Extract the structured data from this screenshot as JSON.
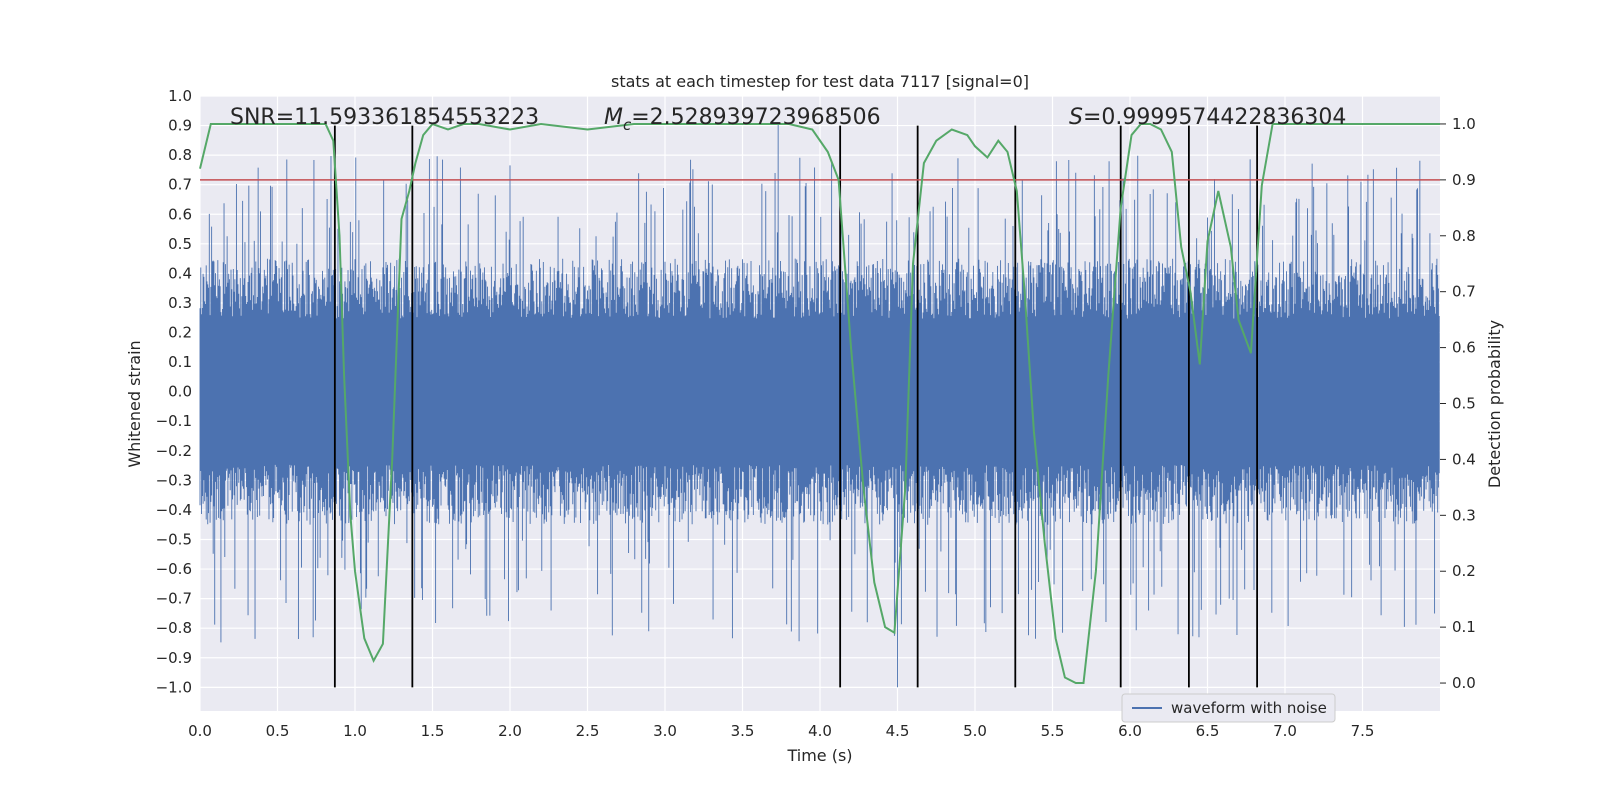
{
  "chart_data": {
    "type": "line",
    "title": "stats at each timestep for test data 7117 [signal=0]",
    "xlabel": "Time (s)",
    "ylabel_left": "Whitened strain",
    "ylabel_right": "Detection probability",
    "xlim": [
      0,
      8
    ],
    "ylim_left": [
      -1.08,
      1.0
    ],
    "ylim_right": [
      -0.05,
      1.05
    ],
    "x_ticks": [
      0,
      0.5,
      1,
      1.5,
      2,
      2.5,
      3,
      3.5,
      4,
      4.5,
      5,
      5.5,
      6,
      6.5,
      7,
      7.5
    ],
    "x_tick_labels": [
      "0.0",
      "0.5",
      "1.0",
      "1.5",
      "2.0",
      "2.5",
      "3.0",
      "3.5",
      "4.0",
      "4.5",
      "5.0",
      "5.5",
      "6.0",
      "6.5",
      "7.0",
      "7.5"
    ],
    "y_left_ticks": [
      1.0,
      0.9,
      0.8,
      0.7,
      0.6,
      0.5,
      0.4,
      0.3,
      0.2,
      0.1,
      0.0,
      -0.1,
      -0.2,
      -0.3,
      -0.4,
      -0.5,
      -0.6,
      -0.7,
      -0.8,
      -0.9,
      -1.0
    ],
    "y_left_tick_labels": [
      "1.0",
      "0.9",
      "0.8",
      "0.7",
      "0.6",
      "0.5",
      "0.4",
      "0.3",
      "0.2",
      "0.1",
      "0.0",
      "−0.1",
      "−0.2",
      "−0.3",
      "−0.4",
      "−0.5",
      "−0.6",
      "−0.7",
      "−0.8",
      "−0.9",
      "−1.0"
    ],
    "y_right_ticks": [
      1.0,
      0.9,
      0.8,
      0.7,
      0.6,
      0.5,
      0.4,
      0.3,
      0.2,
      0.1,
      0.0
    ],
    "y_right_tick_labels": [
      "1.0",
      "0.9",
      "0.8",
      "0.7",
      "0.6",
      "0.5",
      "0.4",
      "0.3",
      "0.2",
      "0.1",
      "0.0"
    ],
    "annotations": {
      "snr": "SNR=11.593361854553223",
      "mc_symbol": "M",
      "mc_sub": "c",
      "mc_value": "=2.528939723968506",
      "s_symbol": "S",
      "s_value": "=0.9999574422836304"
    },
    "legend": {
      "label": "waveform with noise",
      "location": "lower-right"
    },
    "threshold": {
      "axis": "right",
      "y": 0.9,
      "color": "#c44e52"
    },
    "vertical_lines": [
      0.87,
      1.37,
      4.13,
      4.63,
      5.26,
      5.94,
      6.38,
      6.82
    ],
    "vertical_line_range_left": [
      -1.0,
      0.9
    ],
    "waveform": {
      "name": "waveform with noise",
      "color": "#4c72b0",
      "duration_s": 8.0,
      "samples": 1600,
      "typical_envelope": [
        -0.45,
        0.45
      ],
      "approx_extremes": {
        "max": 0.91,
        "min": -1.0
      }
    },
    "detection_probability": {
      "color": "#55a868",
      "x": [
        0.0,
        0.07,
        0.15,
        0.3,
        0.5,
        0.7,
        0.81,
        0.86,
        0.9,
        0.93,
        0.97,
        1.0,
        1.06,
        1.12,
        1.18,
        1.24,
        1.3,
        1.35,
        1.39,
        1.44,
        1.5,
        1.6,
        1.7,
        1.8,
        2.0,
        2.2,
        2.5,
        2.8,
        3.0,
        3.2,
        3.5,
        3.8,
        3.95,
        4.05,
        4.12,
        4.2,
        4.28,
        4.35,
        4.42,
        4.48,
        4.55,
        4.6,
        4.67,
        4.75,
        4.85,
        4.95,
        5.0,
        5.08,
        5.15,
        5.21,
        5.27,
        5.32,
        5.38,
        5.45,
        5.52,
        5.58,
        5.65,
        5.7,
        5.78,
        5.86,
        5.94,
        6.01,
        6.07,
        6.13,
        6.2,
        6.27,
        6.33,
        6.39,
        6.45,
        6.5,
        6.57,
        6.65,
        6.7,
        6.78,
        6.85,
        6.92,
        7.0,
        7.5,
        8.0
      ],
      "y": [
        0.92,
        1.0,
        1.0,
        1.0,
        1.0,
        1.0,
        1.0,
        0.97,
        0.8,
        0.55,
        0.3,
        0.2,
        0.08,
        0.04,
        0.07,
        0.4,
        0.83,
        0.88,
        0.93,
        0.98,
        1.0,
        0.99,
        1.0,
        1.0,
        0.99,
        1.0,
        0.99,
        1.0,
        1.0,
        1.0,
        1.0,
        1.0,
        0.99,
        0.95,
        0.9,
        0.6,
        0.35,
        0.18,
        0.1,
        0.09,
        0.35,
        0.75,
        0.93,
        0.97,
        0.99,
        0.98,
        0.96,
        0.94,
        0.97,
        0.95,
        0.88,
        0.7,
        0.45,
        0.25,
        0.08,
        0.01,
        0.0,
        0.0,
        0.2,
        0.55,
        0.85,
        0.98,
        1.0,
        1.0,
        0.99,
        0.95,
        0.78,
        0.7,
        0.57,
        0.79,
        0.88,
        0.78,
        0.65,
        0.59,
        0.89,
        1.0,
        1.0,
        1.0,
        1.0
      ]
    }
  }
}
